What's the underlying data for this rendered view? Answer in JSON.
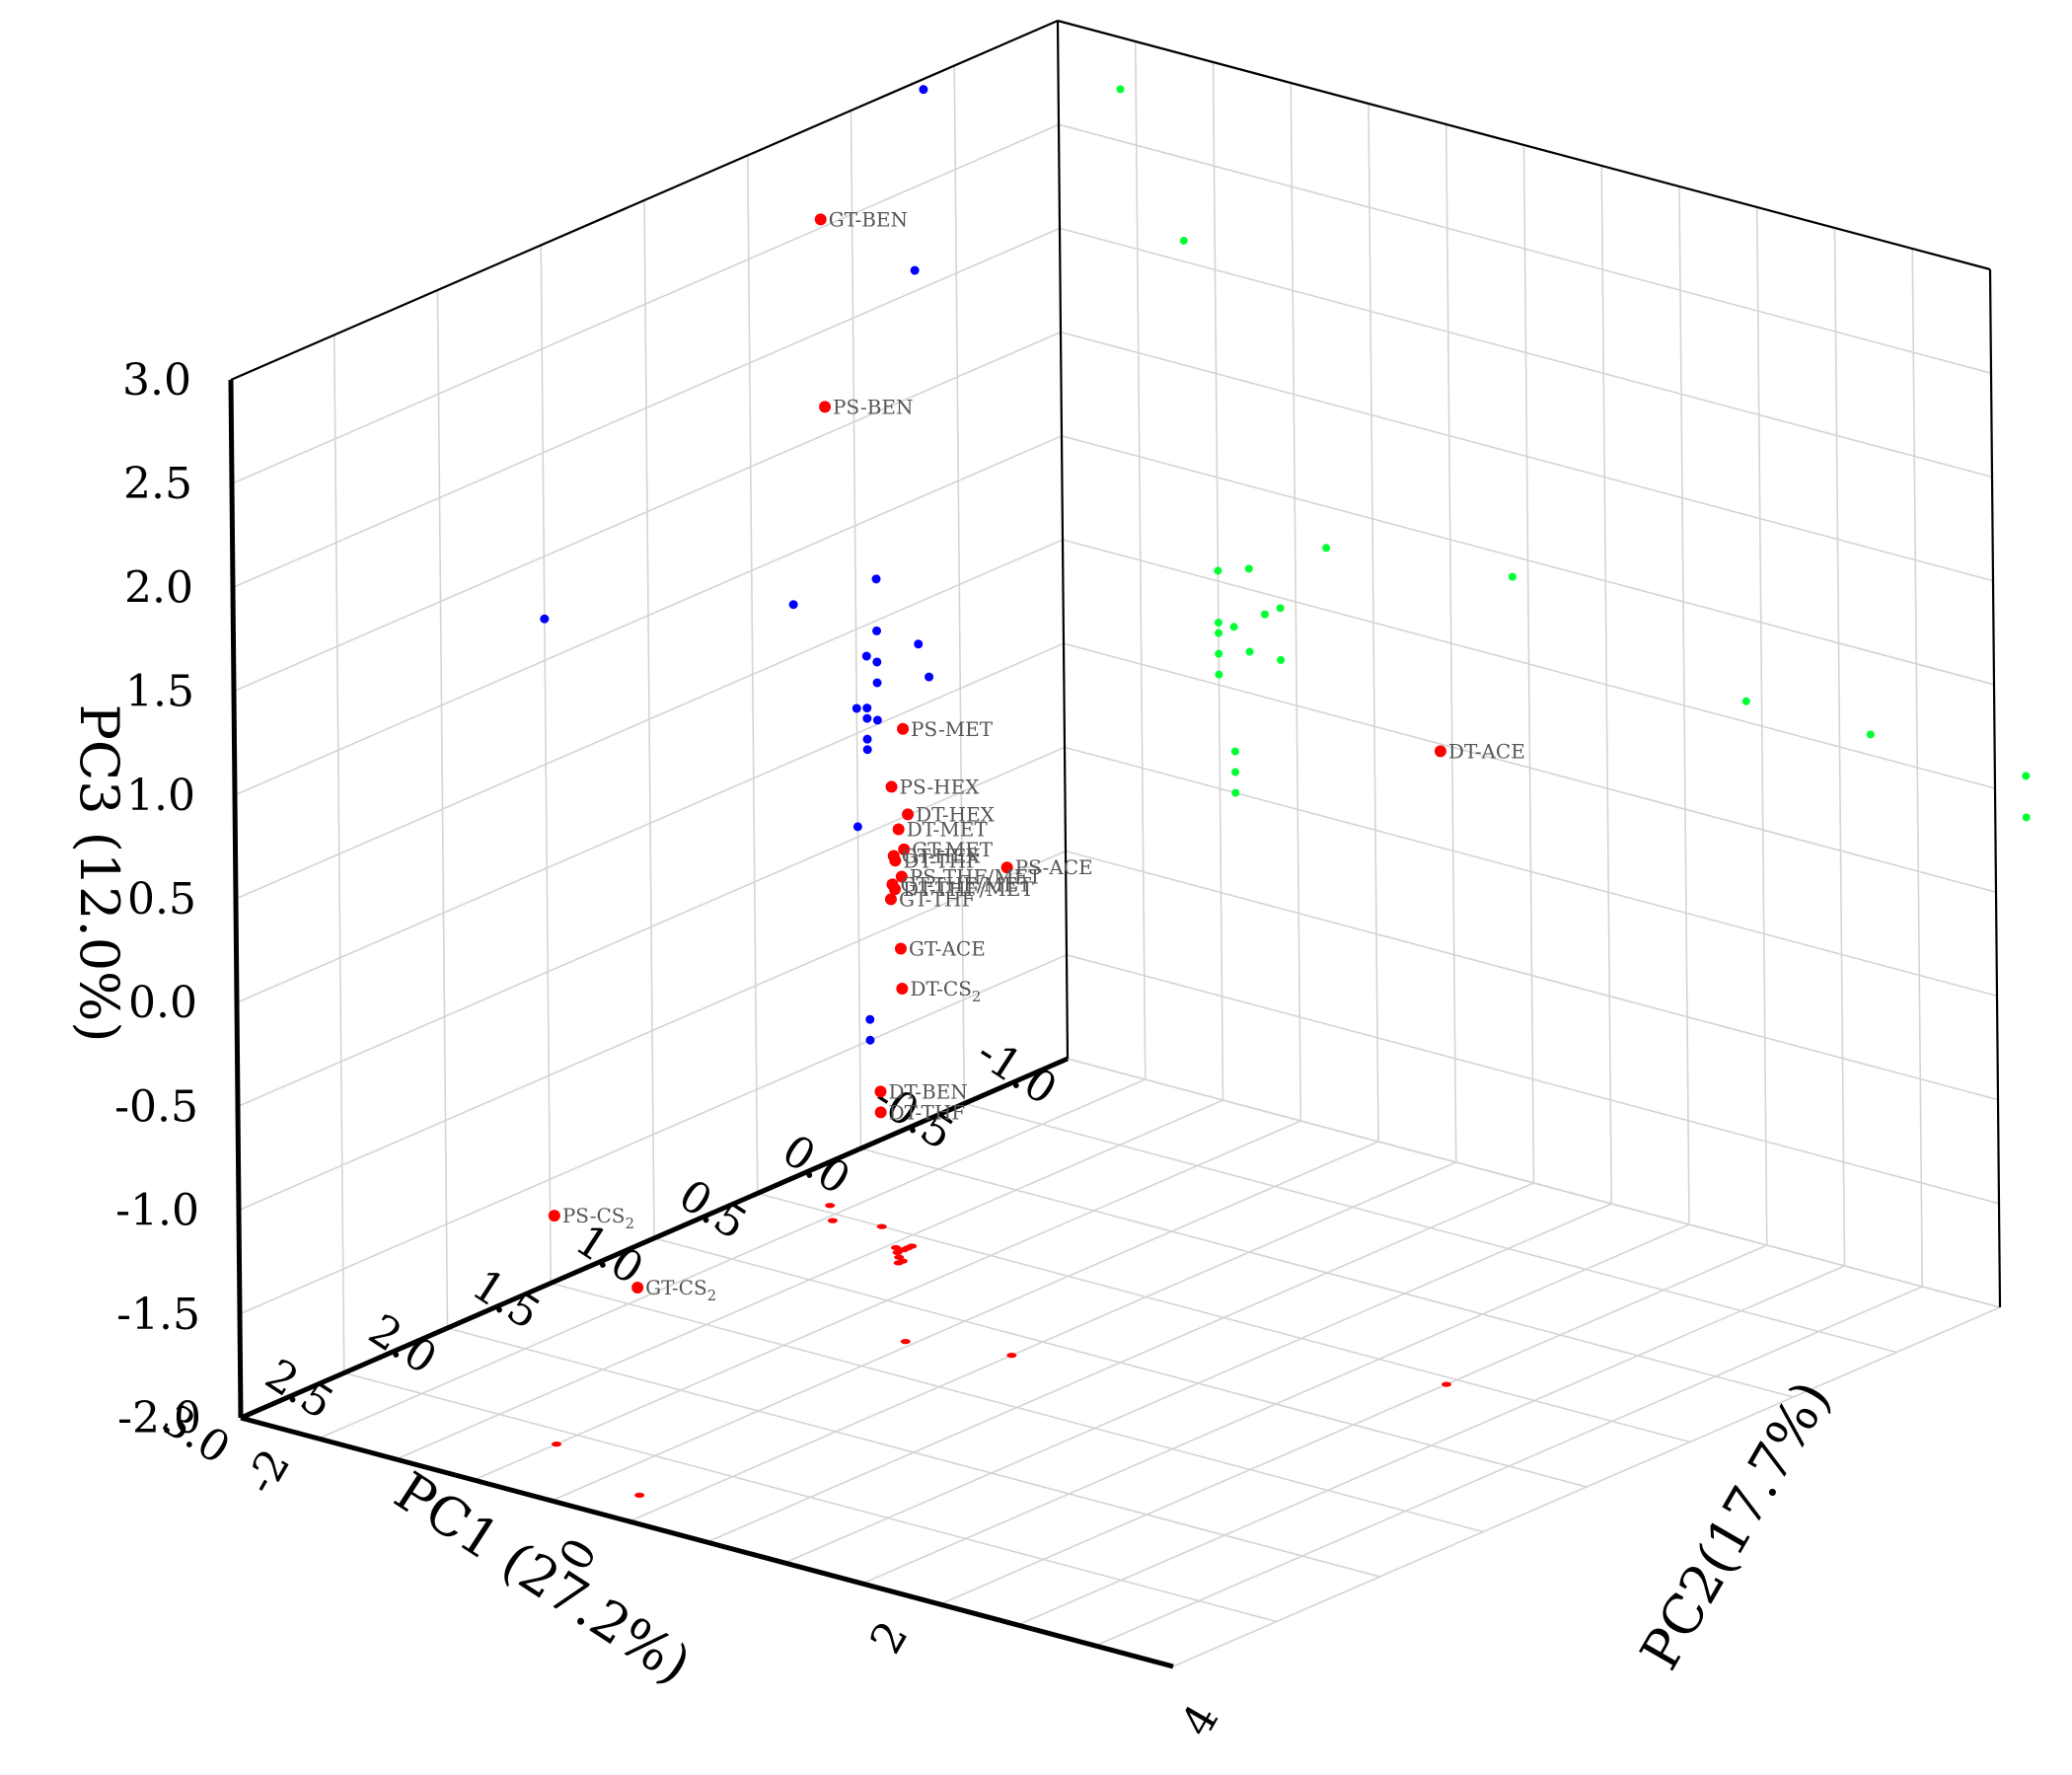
{
  "chart_data": {
    "type": "scatter3d",
    "title": "",
    "xlabel": "PC1 (27.2%)",
    "ylabel": "PC2(17.7%)",
    "zlabel": "PC3 (12.0%)",
    "xlim": [
      -1.0,
      3.0
    ],
    "ylim": [
      -2,
      4
    ],
    "zlim": [
      -2.0,
      3.0
    ],
    "x_ticks": [
      "-1.0",
      "-0.5",
      "0.0",
      "0.5",
      "1.0",
      "1.5",
      "2.0",
      "2.5",
      "3.0"
    ],
    "y_ticks": [
      "-2",
      "0",
      "2",
      "4"
    ],
    "z_ticks": [
      "-2.0",
      "-1.5",
      "-1.0",
      "-0.5",
      "0.0",
      "0.5",
      "1.0",
      "1.5",
      "2.0",
      "2.5",
      "3.0"
    ],
    "grid": true,
    "colors": {
      "main": "#ff0000",
      "pc1_pc3_projection": "#0000ff",
      "pc2_pc3_projection": "#00ff33",
      "pc1_pc2_projection": "#ff0000"
    },
    "labeled_points": [
      {
        "label": "GT-BEN",
        "x": 0.45,
        "y": -1.6,
        "z": 2.75
      },
      {
        "label": "PS-BEN",
        "x": 0.55,
        "y": -1.45,
        "z": 1.92
      },
      {
        "label": "PS-MET",
        "x": 0.6,
        "y": -0.9,
        "z": 0.5
      },
      {
        "label": "PS-HEX",
        "x": 0.62,
        "y": -0.95,
        "z": 0.22
      },
      {
        "label": "DT-HEX",
        "x": 0.58,
        "y": -0.9,
        "z": 0.08
      },
      {
        "label": "DT-MET",
        "x": 0.7,
        "y": -0.8,
        "z": 0.08
      },
      {
        "label": "GT-MET",
        "x": 0.6,
        "y": -0.9,
        "z": -0.08
      },
      {
        "label": "GT-HEX",
        "x": 0.65,
        "y": -0.9,
        "z": -0.09
      },
      {
        "label": "DT-THF",
        "x": 0.68,
        "y": -0.85,
        "z": -0.09
      },
      {
        "label": "PS-THF/MET",
        "x": 0.65,
        "y": -0.85,
        "z": -0.18
      },
      {
        "label": "DT-THF/MET",
        "x": 0.72,
        "y": -0.8,
        "z": -0.2
      },
      {
        "label": "GT-THF/MET",
        "x": 0.62,
        "y": -0.95,
        "z": -0.25
      },
      {
        "label": "GT-THF",
        "x": 0.74,
        "y": -0.8,
        "z": -0.24
      },
      {
        "label": "GT-ACE",
        "x": 0.62,
        "y": -0.9,
        "z": -0.55
      },
      {
        "label": "DT-BEN",
        "x": 0.5,
        "y": -1.2,
        "z": -1.35
      },
      {
        "label": "DT-THF",
        "x": 0.5,
        "y": -1.2,
        "z": -1.45
      },
      {
        "label": "PS-ACE",
        "x": 1.15,
        "y": 0.5,
        "z": 0.35
      },
      {
        "label": "DT-CS",
        "sub": "2",
        "x": 1.25,
        "y": -0.05,
        "z": -0.3
      },
      {
        "label": "DT-ACE",
        "x": 0.55,
        "y": 2.5,
        "z": 1.05
      },
      {
        "label": "PS-CS",
        "sub": "2",
        "x": 2.6,
        "y": -0.5,
        "z": -0.9
      },
      {
        "label": "GT-CS",
        "sub": "2",
        "x": 2.8,
        "y": 0.3,
        "z": -1.0
      }
    ],
    "pc1_pc3_projection": [
      [
        -0.35,
        2.95
      ],
      [
        -0.3,
        2.1
      ],
      [
        1.5,
        1.2
      ],
      [
        0.3,
        0.75
      ],
      [
        -0.1,
        0.7
      ],
      [
        -0.1,
        0.45
      ],
      [
        -0.1,
        0.3
      ],
      [
        -0.05,
        0.35
      ],
      [
        -0.3,
        0.3
      ],
      [
        -0.1,
        0.2
      ],
      [
        -0.35,
        0.12
      ],
      [
        -0.05,
        0.1
      ],
      [
        0.0,
        0.12
      ],
      [
        -0.05,
        0.05
      ],
      [
        -0.1,
        0.02
      ],
      [
        -0.05,
        -0.05
      ],
      [
        -0.05,
        -0.1
      ],
      [
        0.0,
        -0.45
      ],
      [
        -0.05,
        -1.4
      ],
      [
        -0.05,
        -1.5
      ]
    ],
    "pc2_pc3_projection": [
      [
        -1.6,
        2.75
      ],
      [
        -1.2,
        2.1
      ],
      [
        -0.8,
        0.6
      ],
      [
        -0.3,
        0.8
      ],
      [
        -1.0,
        0.55
      ],
      [
        -0.7,
        0.4
      ],
      [
        -0.6,
        0.45
      ],
      [
        -1.0,
        0.3
      ],
      [
        -0.9,
        0.3
      ],
      [
        -1.0,
        0.25
      ],
      [
        -0.8,
        0.2
      ],
      [
        -0.6,
        0.2
      ],
      [
        -1.0,
        0.15
      ],
      [
        -1.0,
        0.05
      ],
      [
        -0.9,
        -0.3
      ],
      [
        0.9,
        0.9
      ],
      [
        2.4,
        0.6
      ],
      [
        3.2,
        0.6
      ],
      [
        4.2,
        0.4
      ],
      [
        4.2,
        0.6
      ],
      [
        -0.9,
        -0.4
      ],
      [
        -0.9,
        -0.5
      ]
    ],
    "pc1_pc2_projection": [
      [
        0.45,
        -1.6
      ],
      [
        0.55,
        -1.45
      ],
      [
        0.6,
        -0.9
      ],
      [
        0.62,
        -0.95
      ],
      [
        0.58,
        -0.9
      ],
      [
        0.7,
        -0.8
      ],
      [
        0.6,
        -0.9
      ],
      [
        0.65,
        -0.9
      ],
      [
        0.68,
        -0.85
      ],
      [
        0.72,
        -0.8
      ],
      [
        0.62,
        -0.9
      ],
      [
        0.5,
        -1.2
      ],
      [
        1.15,
        0.5
      ],
      [
        1.25,
        -0.05
      ],
      [
        0.55,
        2.5
      ],
      [
        2.6,
        -0.5
      ],
      [
        2.8,
        0.3
      ]
    ]
  }
}
